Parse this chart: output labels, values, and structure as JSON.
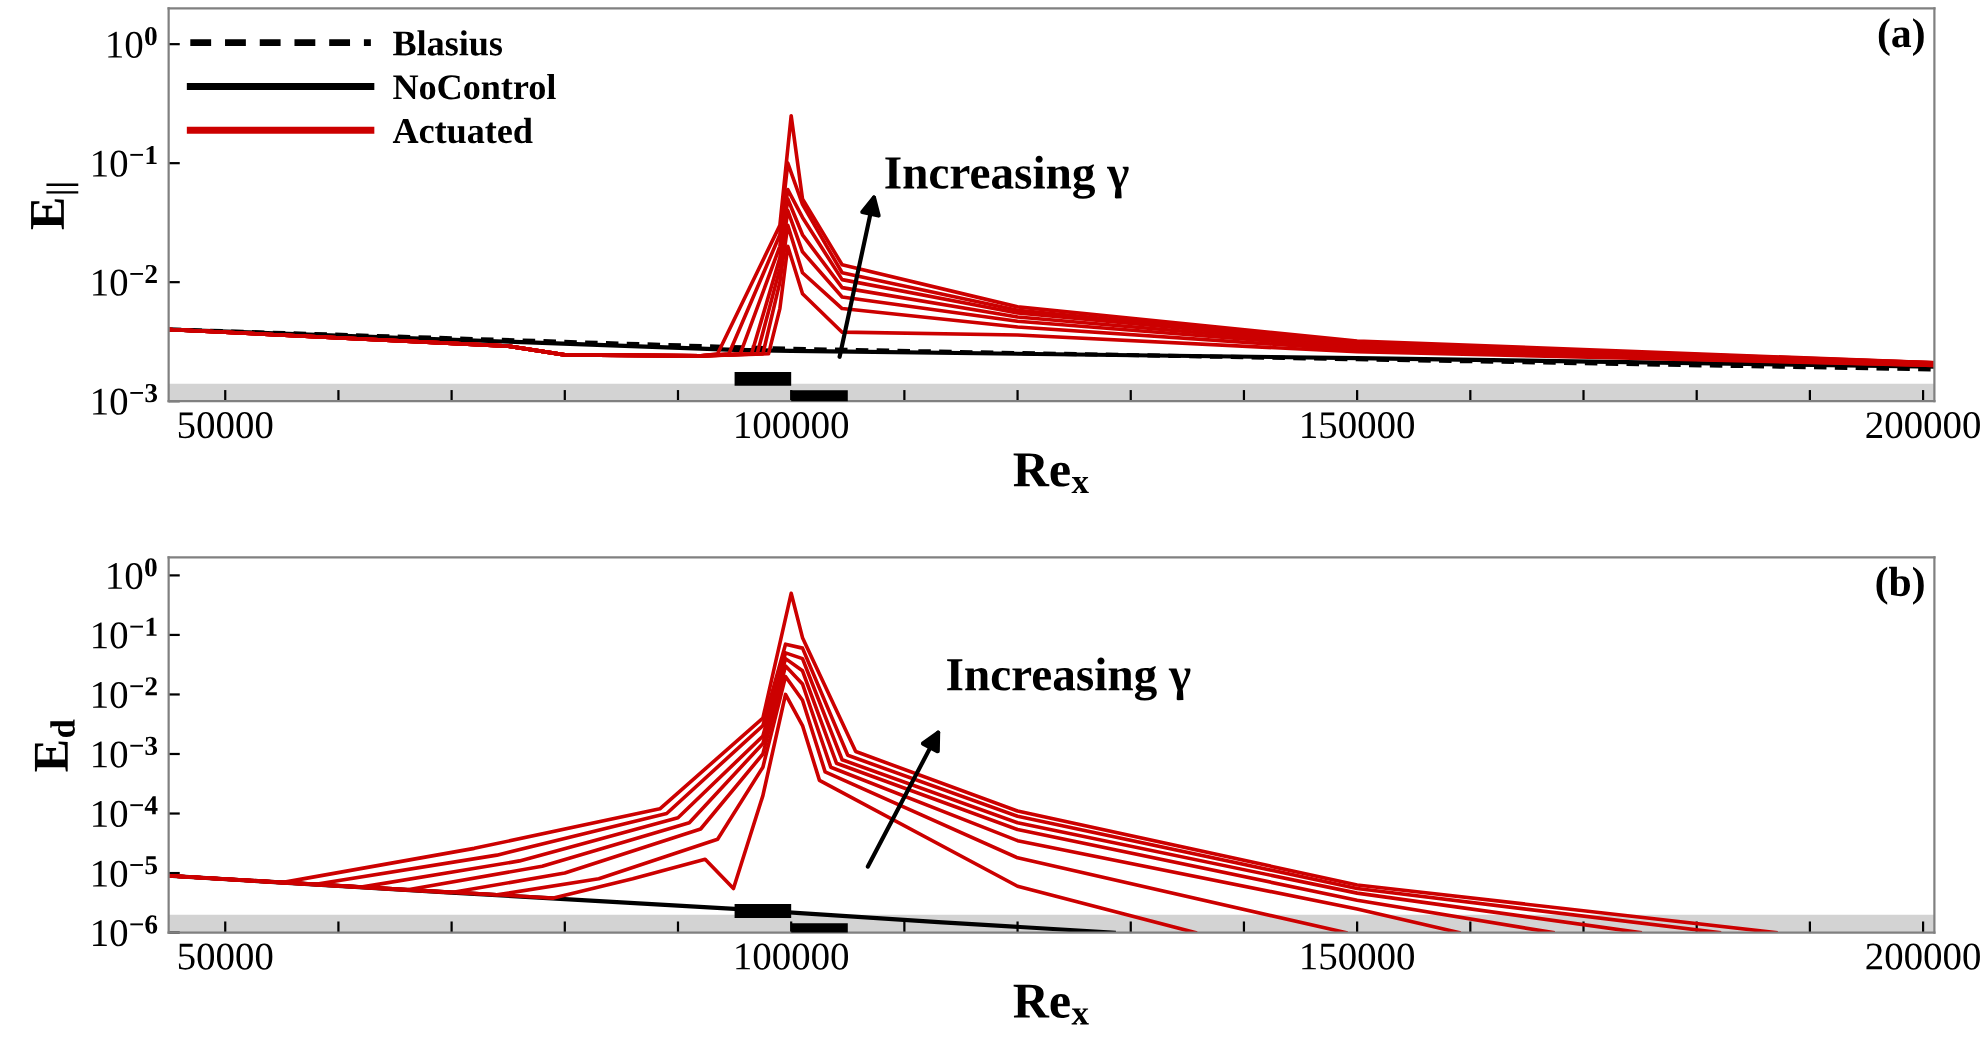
{
  "chart_data": [
    {
      "type": "line",
      "title": "(a)",
      "xlabel": "Re$_{x}$",
      "ylabel": "E$_{||}$",
      "log": "y",
      "grid": false,
      "legend": "top left",
      "xlim": [
        45000,
        201000
      ],
      "ylim": [
        0.001,
        2
      ],
      "xticks": [
        50000,
        {
          "value": 60000,
          "label": null
        },
        {
          "value": 70000,
          "label": null
        },
        {
          "value": 80000,
          "label": null
        },
        {
          "value": 90000,
          "label": null
        },
        100000,
        {
          "value": 110000,
          "label": null
        },
        {
          "value": 120000,
          "label": null
        },
        {
          "value": 130000,
          "label": null
        },
        {
          "value": 140000,
          "label": null
        },
        150000,
        {
          "value": 160000,
          "label": null
        },
        {
          "value": 170000,
          "label": null
        },
        {
          "value": 180000,
          "label": null
        },
        {
          "value": 190000,
          "label": null
        },
        200000
      ],
      "yticks": [
        {
          "value": 0.001,
          "label": "10$^{−3}$"
        },
        {
          "value": 0.01,
          "label": "10$^{−2}$"
        },
        {
          "value": 0.1,
          "label": "10$^{−1}$"
        },
        {
          "value": 1,
          "label": "10$^{0}$"
        }
      ],
      "bands": [
        {
          "axis": "y",
          "from": 0.001,
          "to": 0.0014,
          "color": "#d3d3d3"
        }
      ],
      "annotations": [
        "Increasing γ"
      ],
      "series": [
        {
          "name": "Blasius",
          "line_style": "dashed",
          "color": "#000000",
          "x": [
            45000,
            100000,
            150000,
            201000
          ],
          "values": [
            0.004,
            0.00275,
            0.00225,
            0.00185
          ]
        },
        {
          "name": "NoControl",
          "line_style": "solid",
          "color": "#000000",
          "x": [
            45000,
            95000,
            100000,
            150000,
            201000
          ],
          "values": [
            0.004,
            0.0027,
            0.00265,
            0.0023,
            0.00195
          ]
        },
        {
          "name": "Actuated",
          "color": "#cc0000",
          "x": [
            45000,
            75000,
            80000,
            92000,
            98000,
            99000,
            99700,
            101000,
            104500,
            120000,
            150000,
            201000
          ],
          "values": [
            0.004,
            0.0029,
            0.00245,
            0.0024,
            0.0025,
            0.006,
            0.02,
            0.008,
            0.0038,
            0.0036,
            0.0026,
            0.002
          ]
        },
        {
          "type": "line",
          "color": "#cc0000",
          "x": [
            45000,
            75000,
            80000,
            92000,
            97500,
            99000,
            99700,
            101000,
            104500,
            120000,
            150000,
            201000
          ],
          "values": [
            0.004,
            0.0029,
            0.00245,
            0.0024,
            0.0025,
            0.01,
            0.03,
            0.012,
            0.006,
            0.0042,
            0.0027,
            0.002
          ]
        },
        {
          "type": "line",
          "color": "#cc0000",
          "x": [
            45000,
            75000,
            80000,
            92000,
            97000,
            99000,
            99700,
            101000,
            104500,
            120000,
            150000,
            201000
          ],
          "values": [
            0.004,
            0.0029,
            0.00245,
            0.0024,
            0.0025,
            0.013,
            0.04,
            0.018,
            0.0075,
            0.0047,
            0.0028,
            0.00205
          ]
        },
        {
          "type": "line",
          "color": "#cc0000",
          "x": [
            45000,
            75000,
            80000,
            92000,
            96500,
            99000,
            99700,
            101000,
            104500,
            120000,
            150000,
            201000
          ],
          "values": [
            0.004,
            0.0029,
            0.00245,
            0.0024,
            0.0025,
            0.016,
            0.05,
            0.025,
            0.009,
            0.0051,
            0.0029,
            0.00205
          ]
        },
        {
          "type": "line",
          "color": "#cc0000",
          "x": [
            45000,
            75000,
            80000,
            92000,
            95500,
            99000,
            99700,
            101000,
            104500,
            120000,
            150000,
            201000
          ],
          "values": [
            0.004,
            0.0029,
            0.00245,
            0.0024,
            0.0025,
            0.02,
            0.06,
            0.035,
            0.0105,
            0.0055,
            0.003,
            0.0021
          ]
        },
        {
          "type": "line",
          "color": "#cc0000",
          "x": [
            45000,
            75000,
            80000,
            92000,
            94500,
            99000,
            99700,
            101000,
            104500,
            120000,
            150000,
            201000
          ],
          "values": [
            0.004,
            0.0029,
            0.00245,
            0.0024,
            0.0025,
            0.025,
            0.1,
            0.045,
            0.012,
            0.0058,
            0.0031,
            0.0021
          ]
        },
        {
          "type": "line",
          "color": "#cc0000",
          "x": [
            45000,
            75000,
            80000,
            92000,
            93500,
            99000,
            100000,
            101000,
            104500,
            120000,
            150000,
            201000
          ],
          "values": [
            0.004,
            0.0029,
            0.00245,
            0.0024,
            0.0025,
            0.03,
            0.25,
            0.05,
            0.014,
            0.0062,
            0.0032,
            0.0021
          ]
        },
        {
          "type": "step",
          "color": "#000000",
          "x": [
            95000,
            100000
          ],
          "values": [
            0.00154,
            0.00154
          ]
        },
        {
          "type": "step",
          "color": "#000000",
          "x": [
            100000,
            105000
          ],
          "values": [
            0.00108,
            0.00108
          ]
        }
      ]
    },
    {
      "type": "line",
      "title": "(b)",
      "xlabel": "Re$_{x}$",
      "ylabel": "E$_{d}$",
      "log": "y",
      "grid": false,
      "legend": false,
      "xlim": [
        45000,
        201000
      ],
      "ylim": [
        1e-06,
        2
      ],
      "xticks": [
        50000,
        {
          "value": 60000,
          "label": null
        },
        {
          "value": 70000,
          "label": null
        },
        {
          "value": 80000,
          "label": null
        },
        {
          "value": 90000,
          "label": null
        },
        100000,
        {
          "value": 110000,
          "label": null
        },
        {
          "value": 120000,
          "label": null
        },
        {
          "value": 130000,
          "label": null
        },
        {
          "value": 140000,
          "label": null
        },
        150000,
        {
          "value": 160000,
          "label": null
        },
        {
          "value": 170000,
          "label": null
        },
        {
          "value": 180000,
          "label": null
        },
        {
          "value": 190000,
          "label": null
        },
        200000
      ],
      "yticks": [
        {
          "value": 1e-06,
          "label": "10$^{−6}$"
        },
        {
          "value": 1e-05,
          "label": "10$^{−5}$"
        },
        {
          "value": 0.0001,
          "label": "10$^{−4}$"
        },
        {
          "value": 0.001,
          "label": "10$^{−3}$"
        },
        {
          "value": 0.01,
          "label": "10$^{−2}$"
        },
        {
          "value": 0.1,
          "label": "10$^{−1}$"
        },
        {
          "value": 1,
          "label": "10$^{0}$"
        }
      ],
      "bands": [
        {
          "axis": "y",
          "from": 1e-06,
          "to": 2e-06,
          "color": "#d3d3d3"
        }
      ],
      "annotations": [
        "Increasing γ"
      ],
      "series": [
        {
          "line_style": "solid",
          "color": "#000000",
          "x": [
            45000,
            70000,
            95000,
            113000,
            128500
          ],
          "values": [
            9e-06,
            4.7e-06,
            2.5e-06,
            1.5e-06,
            1e-06
          ]
        },
        {
          "type": "line",
          "color": "#cc0000",
          "x": [
            45000,
            79000,
            86000,
            92400,
            94900,
            97500,
            99500,
            101000,
            102500,
            120000,
            135700
          ],
          "values": [
            9e-06,
            3.8e-06,
            8e-06,
            1.7e-05,
            5.5e-06,
            0.0002,
            0.01,
            0.003,
            0.00036,
            6e-06,
            1e-06
          ]
        },
        {
          "type": "line",
          "color": "#cc0000",
          "x": [
            45000,
            74000,
            83000,
            93500,
            97500,
            99500,
            101000,
            103000,
            120000,
            149000
          ],
          "values": [
            9e-06,
            4.3e-06,
            8e-06,
            3.7e-05,
            0.0006,
            0.02,
            0.008,
            0.0005,
            1.8e-05,
            1e-06
          ]
        },
        {
          "type": "line",
          "color": "#cc0000",
          "x": [
            45000,
            70000,
            80000,
            92000,
            97500,
            99500,
            101000,
            103500,
            120000,
            150000,
            159000
          ],
          "values": [
            9e-06,
            4.7e-06,
            1e-05,
            5.5e-05,
            0.001,
            0.03,
            0.015,
            0.0006,
            3.5e-05,
            2.5e-06,
            1e-06
          ]
        },
        {
          "type": "line",
          "color": "#cc0000",
          "x": [
            45000,
            66000,
            78000,
            91000,
            97500,
            99500,
            101000,
            104000,
            120000,
            150000,
            167300
          ],
          "values": [
            9e-06,
            5.2e-06,
            1.3e-05,
            7e-05,
            0.0015,
            0.04,
            0.025,
            0.0007,
            5.4e-05,
            3.5e-06,
            1e-06
          ]
        },
        {
          "type": "line",
          "color": "#cc0000",
          "x": [
            45000,
            62000,
            76000,
            90000,
            97500,
            99500,
            101000,
            104500,
            120000,
            150000,
            175000
          ],
          "values": [
            9e-06,
            5.8e-06,
            1.6e-05,
            8.5e-05,
            0.002,
            0.05,
            0.04,
            0.0008,
            7e-05,
            4.6e-06,
            1e-06
          ]
        },
        {
          "type": "line",
          "color": "#cc0000",
          "x": [
            45000,
            58000,
            74000,
            89000,
            97500,
            99500,
            101000,
            105000,
            120000,
            150000,
            182000
          ],
          "values": [
            9e-06,
            6.5e-06,
            2e-05,
            0.0001,
            0.003,
            0.07,
            0.06,
            0.00095,
            9e-05,
            5.5e-06,
            1e-06
          ]
        },
        {
          "type": "line",
          "color": "#cc0000",
          "x": [
            45000,
            55000,
            72000,
            88400,
            97500,
            100000,
            101000,
            105700,
            120000,
            150000,
            187000
          ],
          "values": [
            9e-06,
            6.9e-06,
            2.6e-05,
            0.00012,
            0.004,
            0.5,
            0.09,
            0.0011,
            0.00011,
            6.3e-06,
            1e-06
          ]
        },
        {
          "type": "step",
          "color": "#000000",
          "x": [
            95000,
            100000
          ],
          "values": [
            2.3e-06,
            2.3e-06
          ]
        },
        {
          "type": "step",
          "color": "#000000",
          "x": [
            100000,
            105000
          ],
          "values": [
            1.1e-06,
            1.1e-06
          ]
        }
      ]
    }
  ]
}
